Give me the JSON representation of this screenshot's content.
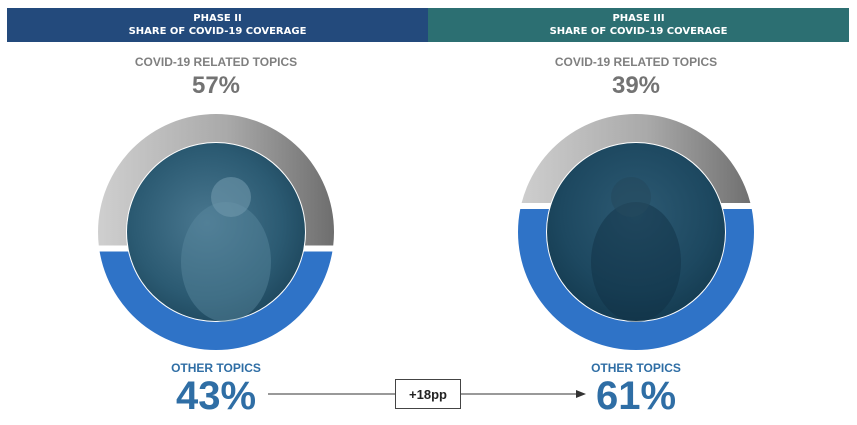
{
  "headers": [
    {
      "line1": "PHASE II",
      "line2": "SHARE OF COVID-19 COVERAGE"
    },
    {
      "line1": "PHASE III",
      "line2": "SHARE OF COVID-19 COVERAGE"
    }
  ],
  "labels": {
    "covid": "COVID-19 RELATED TOPICS",
    "other": "OTHER TOPICS",
    "delta": "+18pp"
  },
  "chart_data": [
    {
      "type": "pie",
      "title": "PHASE II SHARE OF COVID-19 COVERAGE",
      "categories": [
        "COVID-19 RELATED TOPICS",
        "OTHER TOPICS"
      ],
      "values": [
        57,
        43
      ],
      "value_labels": [
        "57%",
        "43%"
      ]
    },
    {
      "type": "pie",
      "title": "PHASE III SHARE OF COVID-19 COVERAGE",
      "categories": [
        "COVID-19 RELATED TOPICS",
        "OTHER TOPICS"
      ],
      "values": [
        39,
        61
      ],
      "value_labels": [
        "39%",
        "61%"
      ]
    }
  ],
  "colors": {
    "phase2_header": "#234a7c",
    "phase3_header": "#2c6f72",
    "covid_gray": "#a6a6a6",
    "other_blue": "#2f73c7",
    "photo_teal": "#1f4f66"
  }
}
